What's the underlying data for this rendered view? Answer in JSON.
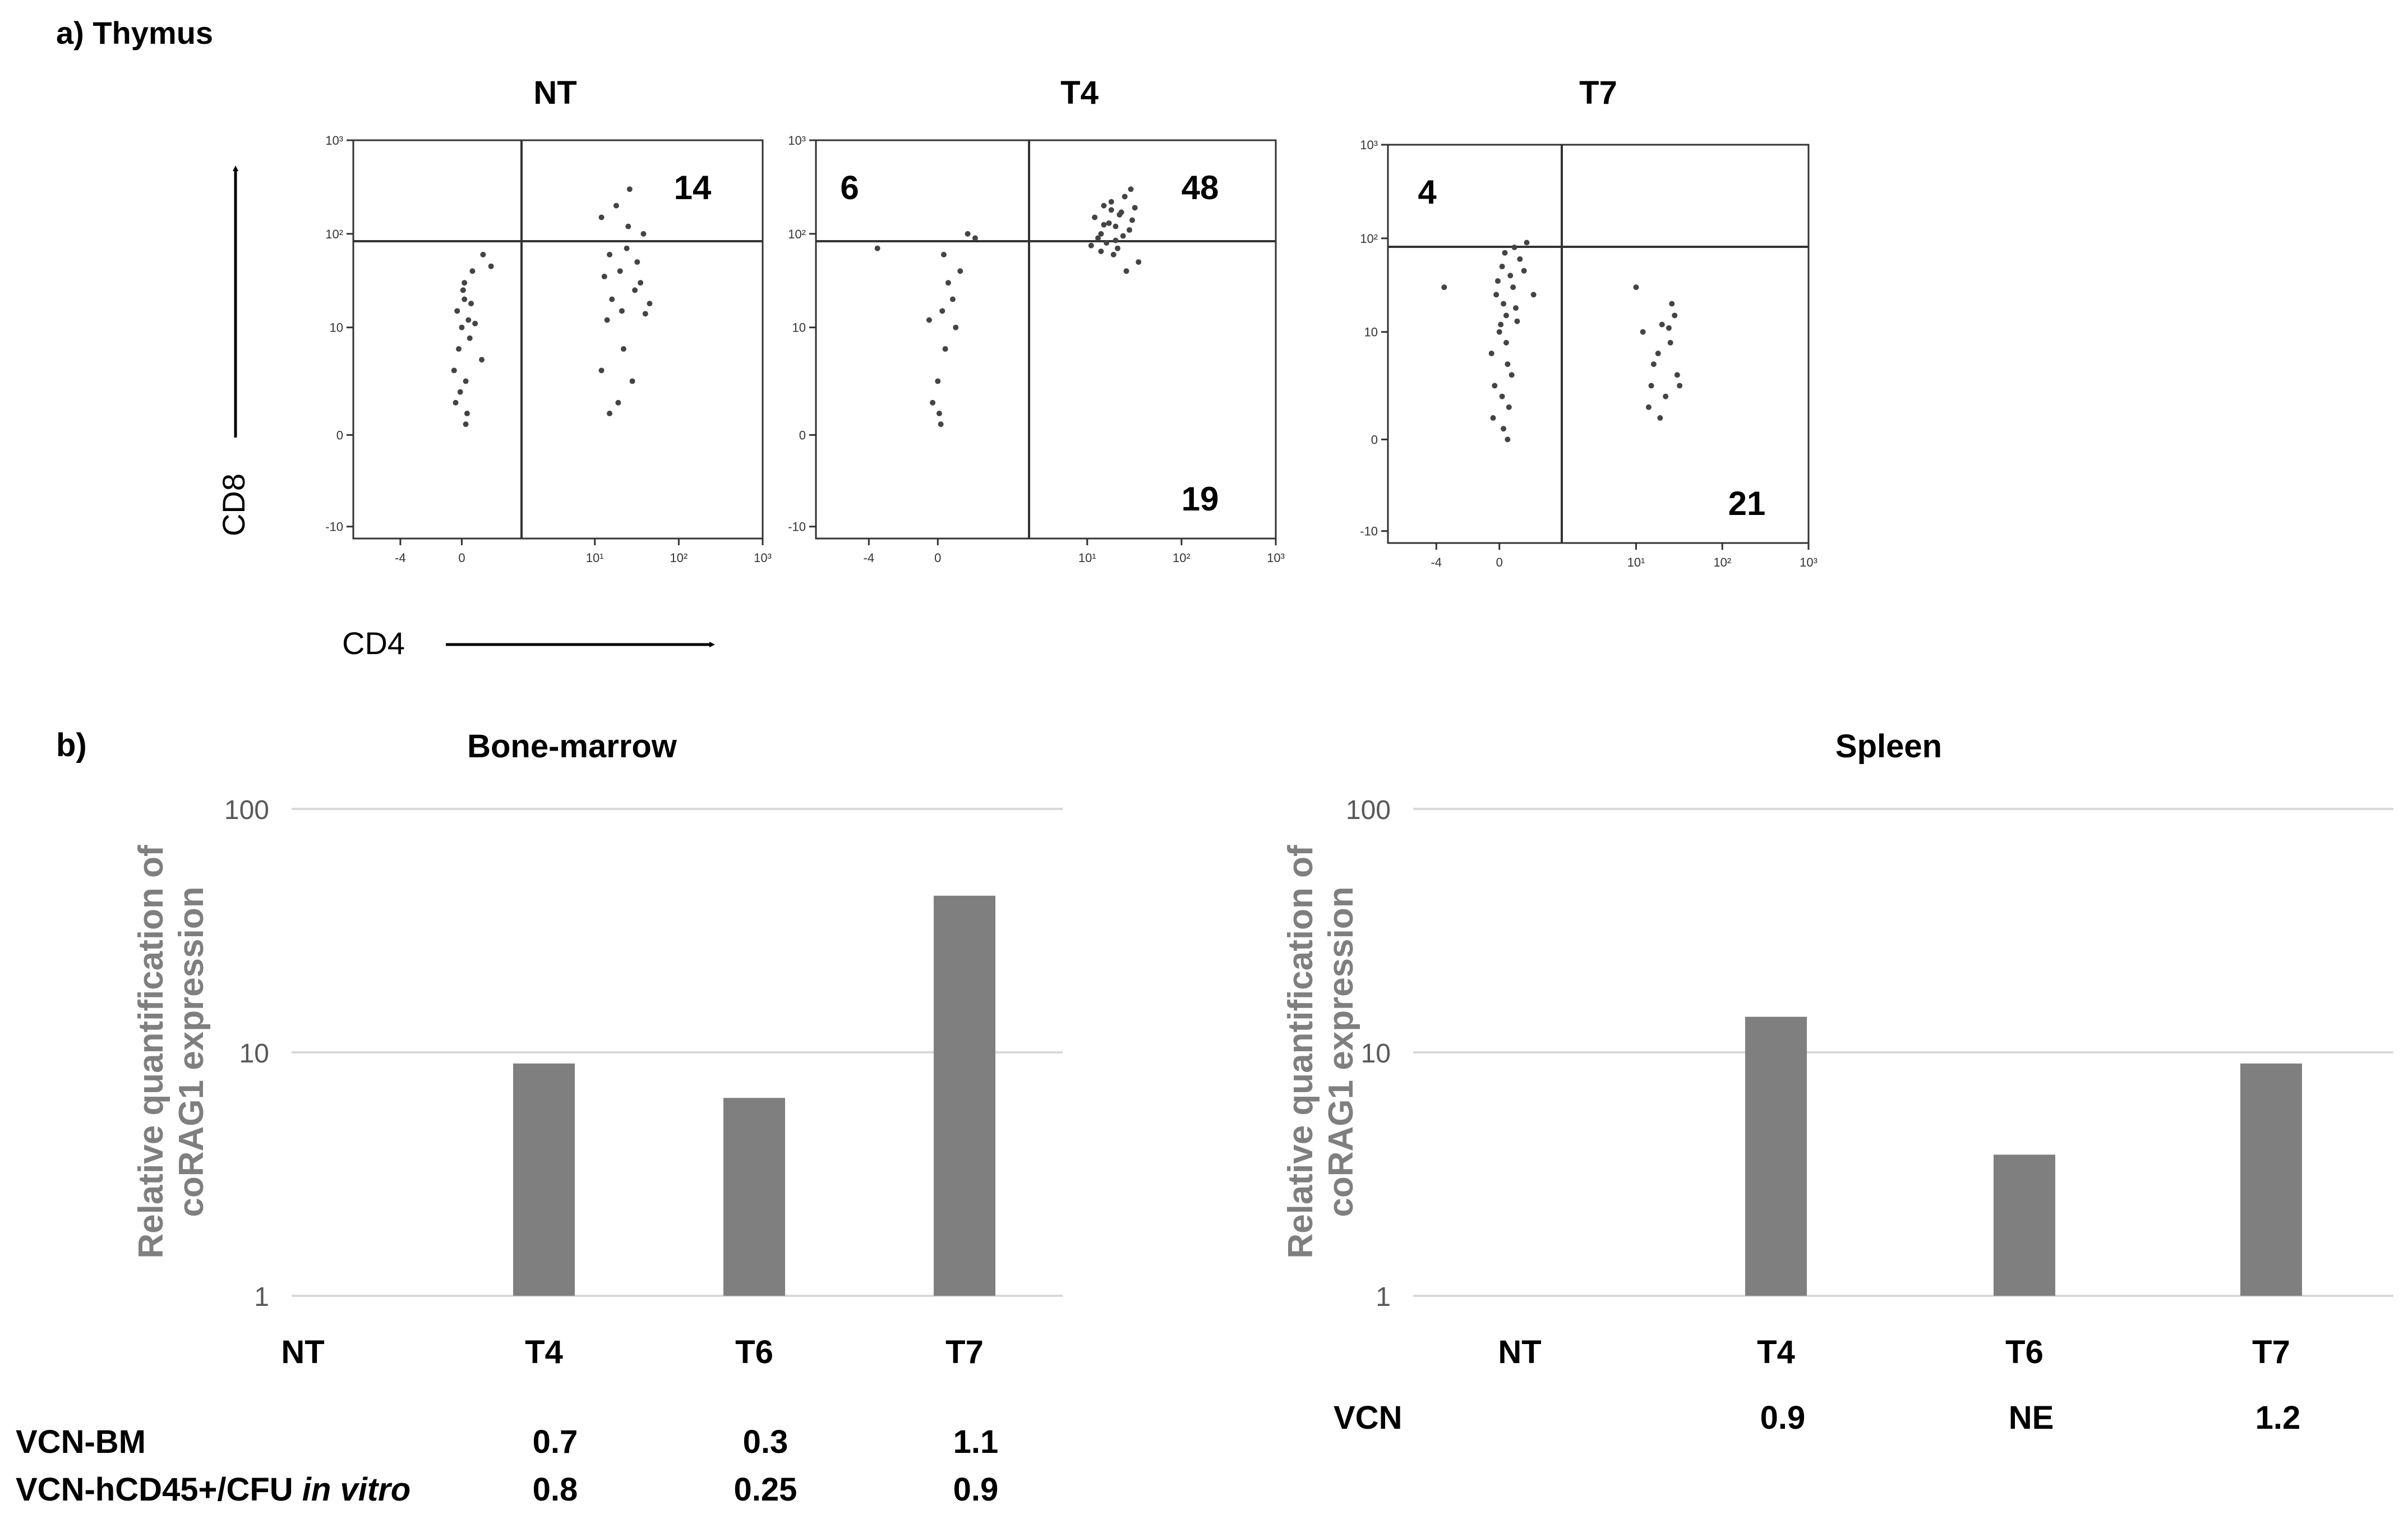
{
  "panel_a": {
    "label": "a) Thymus",
    "y_axis_label": "CD8",
    "x_axis_label": "CD4"
  },
  "panel_b": {
    "label": "b)"
  },
  "chart_data": [
    {
      "type": "scatter",
      "title": "NT",
      "xlabel": "CD4",
      "ylabel": "CD8",
      "y_ticks": [
        "10³",
        "10²",
        "10",
        "0",
        "-10"
      ],
      "x_ticks": [
        "-4",
        "0",
        "10¹",
        "10²",
        "10³"
      ],
      "quadrant_labels": {
        "top_right": "14"
      },
      "points": [
        {
          "x": 0.0,
          "y": 10
        },
        {
          "x": -0.3,
          "y": 15
        },
        {
          "x": 0.2,
          "y": 20
        },
        {
          "x": 0.5,
          "y": 12
        },
        {
          "x": -0.5,
          "y": 6
        },
        {
          "x": 0.3,
          "y": 5
        },
        {
          "x": -0.2,
          "y": 8
        },
        {
          "x": 0.6,
          "y": 9
        },
        {
          "x": 1.0,
          "y": 11
        },
        {
          "x": 1.5,
          "y": 7
        },
        {
          "x": 0.1,
          "y": 25
        },
        {
          "x": -0.4,
          "y": 3
        },
        {
          "x": 0.4,
          "y": 2
        },
        {
          "x": 0.8,
          "y": 40
        },
        {
          "x": 1.6,
          "y": 60
        },
        {
          "x": 2.2,
          "y": 45
        },
        {
          "x": 0.7,
          "y": 18
        },
        {
          "x": 0.2,
          "y": 30
        },
        {
          "x": -0.1,
          "y": 4
        },
        {
          "x": 0.3,
          "y": 1
        },
        {
          "x": 12,
          "y": 150
        },
        {
          "x": 18,
          "y": 200
        },
        {
          "x": 25,
          "y": 120
        },
        {
          "x": 15,
          "y": 60
        },
        {
          "x": 20,
          "y": 40
        },
        {
          "x": 30,
          "y": 25
        },
        {
          "x": 14,
          "y": 12
        },
        {
          "x": 22,
          "y": 8
        },
        {
          "x": 28,
          "y": 5
        },
        {
          "x": 35,
          "y": 30
        },
        {
          "x": 16,
          "y": 20
        },
        {
          "x": 12,
          "y": 6
        },
        {
          "x": 19,
          "y": 3
        },
        {
          "x": 40,
          "y": 14
        },
        {
          "x": 24,
          "y": 70
        },
        {
          "x": 32,
          "y": 50
        },
        {
          "x": 15,
          "y": 2
        },
        {
          "x": 26,
          "y": 300
        },
        {
          "x": 38,
          "y": 100
        },
        {
          "x": 21,
          "y": 15
        },
        {
          "x": 13,
          "y": 35
        },
        {
          "x": 45,
          "y": 18
        }
      ]
    },
    {
      "type": "scatter",
      "title": "T4",
      "xlabel": "CD4",
      "ylabel": "CD8",
      "y_ticks": [
        "10³",
        "10²",
        "10",
        "0",
        "-10"
      ],
      "x_ticks": [
        "-4",
        "0",
        "10¹",
        "10²",
        "10³"
      ],
      "quadrant_labels": {
        "top_left": "6",
        "top_right": "48",
        "bottom_right": "19"
      },
      "points": [
        {
          "x": 0.0,
          "y": 5
        },
        {
          "x": 0.3,
          "y": 15
        },
        {
          "x": -0.3,
          "y": 3
        },
        {
          "x": 0.5,
          "y": 8
        },
        {
          "x": 1.0,
          "y": 20
        },
        {
          "x": 0.2,
          "y": 1
        },
        {
          "x": -0.5,
          "y": 12
        },
        {
          "x": 1.5,
          "y": 40
        },
        {
          "x": 2.0,
          "y": 100
        },
        {
          "x": 0.7,
          "y": 30
        },
        {
          "x": -3.5,
          "y": 70
        },
        {
          "x": 0.4,
          "y": 60
        },
        {
          "x": 2.5,
          "y": 90
        },
        {
          "x": 0.1,
          "y": 2
        },
        {
          "x": 1.2,
          "y": 10
        },
        {
          "x": 12,
          "y": 150
        },
        {
          "x": 15,
          "y": 200
        },
        {
          "x": 18,
          "y": 180
        },
        {
          "x": 20,
          "y": 120
        },
        {
          "x": 14,
          "y": 100
        },
        {
          "x": 22,
          "y": 160
        },
        {
          "x": 25,
          "y": 250
        },
        {
          "x": 30,
          "y": 140
        },
        {
          "x": 16,
          "y": 80
        },
        {
          "x": 19,
          "y": 60
        },
        {
          "x": 13,
          "y": 90
        },
        {
          "x": 28,
          "y": 110
        },
        {
          "x": 17,
          "y": 130
        },
        {
          "x": 24,
          "y": 95
        },
        {
          "x": 21,
          "y": 70
        },
        {
          "x": 35,
          "y": 50
        },
        {
          "x": 26,
          "y": 40
        },
        {
          "x": 11,
          "y": 75
        },
        {
          "x": 18,
          "y": 220
        },
        {
          "x": 23,
          "y": 170
        },
        {
          "x": 15,
          "y": 125
        },
        {
          "x": 20,
          "y": 85
        },
        {
          "x": 29,
          "y": 300
        },
        {
          "x": 14,
          "y": 65
        },
        {
          "x": 32,
          "y": 190
        }
      ]
    },
    {
      "type": "scatter",
      "title": "T7",
      "xlabel": "CD4",
      "ylabel": "CD8",
      "y_ticks": [
        "10³",
        "10²",
        "10",
        "0",
        "-10"
      ],
      "x_ticks": [
        "-4",
        "0",
        "10¹",
        "10²",
        "10³"
      ],
      "quadrant_labels": {
        "top_left": "4",
        "bottom_right": "21"
      },
      "points": [
        {
          "x": 0.0,
          "y": 10
        },
        {
          "x": 0.3,
          "y": 20
        },
        {
          "x": -0.3,
          "y": 5
        },
        {
          "x": 0.5,
          "y": 15
        },
        {
          "x": 1.0,
          "y": 30
        },
        {
          "x": 0.2,
          "y": 50
        },
        {
          "x": -0.5,
          "y": 8
        },
        {
          "x": 1.5,
          "y": 60
        },
        {
          "x": 0.7,
          "y": 3
        },
        {
          "x": 0.1,
          "y": 12
        },
        {
          "x": -0.2,
          "y": 25
        },
        {
          "x": 0.4,
          "y": 70
        },
        {
          "x": 0.8,
          "y": 40
        },
        {
          "x": 1.2,
          "y": 18
        },
        {
          "x": 0.6,
          "y": 7
        },
        {
          "x": -0.4,
          "y": 2
        },
        {
          "x": 0.3,
          "y": 1
        },
        {
          "x": 2.0,
          "y": 90
        },
        {
          "x": 1.8,
          "y": 45
        },
        {
          "x": 0.9,
          "y": 6
        },
        {
          "x": -0.1,
          "y": 35
        },
        {
          "x": 0.5,
          "y": 9
        },
        {
          "x": 1.3,
          "y": 13
        },
        {
          "x": 0.2,
          "y": 4
        },
        {
          "x": -3.5,
          "y": 30
        },
        {
          "x": 2.5,
          "y": 25
        },
        {
          "x": 0.6,
          "y": 0
        },
        {
          "x": 1.1,
          "y": 80
        },
        {
          "x": 10,
          "y": 30
        },
        {
          "x": 12,
          "y": 10
        },
        {
          "x": 15,
          "y": 5
        },
        {
          "x": 18,
          "y": 8
        },
        {
          "x": 20,
          "y": 12
        },
        {
          "x": 22,
          "y": 4
        },
        {
          "x": 25,
          "y": 9
        },
        {
          "x": 28,
          "y": 15
        },
        {
          "x": 30,
          "y": 6
        },
        {
          "x": 14,
          "y": 3
        },
        {
          "x": 16,
          "y": 7
        },
        {
          "x": 24,
          "y": 11
        },
        {
          "x": 19,
          "y": 2
        },
        {
          "x": 32,
          "y": 5
        },
        {
          "x": 26,
          "y": 20
        }
      ]
    },
    {
      "type": "bar",
      "title": "Bone-marrow",
      "ylabel": "Relative quantification of coRAG1 expression",
      "yscale": "log",
      "ylim": [
        1,
        100
      ],
      "y_ticks": [
        "1",
        "10",
        "100"
      ],
      "categories": [
        "NT",
        "T4",
        "T6",
        "T7"
      ],
      "values": [
        1,
        9,
        6.5,
        44
      ],
      "table_rows": [
        {
          "label": "VCN-BM",
          "label_italic": "",
          "values": [
            "",
            "0.7",
            "0.3",
            "1.1"
          ]
        },
        {
          "label": "VCN-hCD45+/CFU ",
          "label_italic": "in vitro",
          "values": [
            "",
            "0.8",
            "0.25",
            "0.9"
          ]
        }
      ]
    },
    {
      "type": "bar",
      "title": "Spleen",
      "ylabel": "Relative quantification of coRAG1 expression",
      "yscale": "log",
      "ylim": [
        1,
        100
      ],
      "y_ticks": [
        "1",
        "10",
        "100"
      ],
      "categories": [
        "NT",
        "T4",
        "T6",
        "T7"
      ],
      "values": [
        1,
        14,
        3.8,
        9
      ],
      "table_rows": [
        {
          "label": "VCN",
          "label_italic": "",
          "values": [
            "",
            "0.9",
            "NE",
            "1.2"
          ]
        }
      ]
    }
  ]
}
